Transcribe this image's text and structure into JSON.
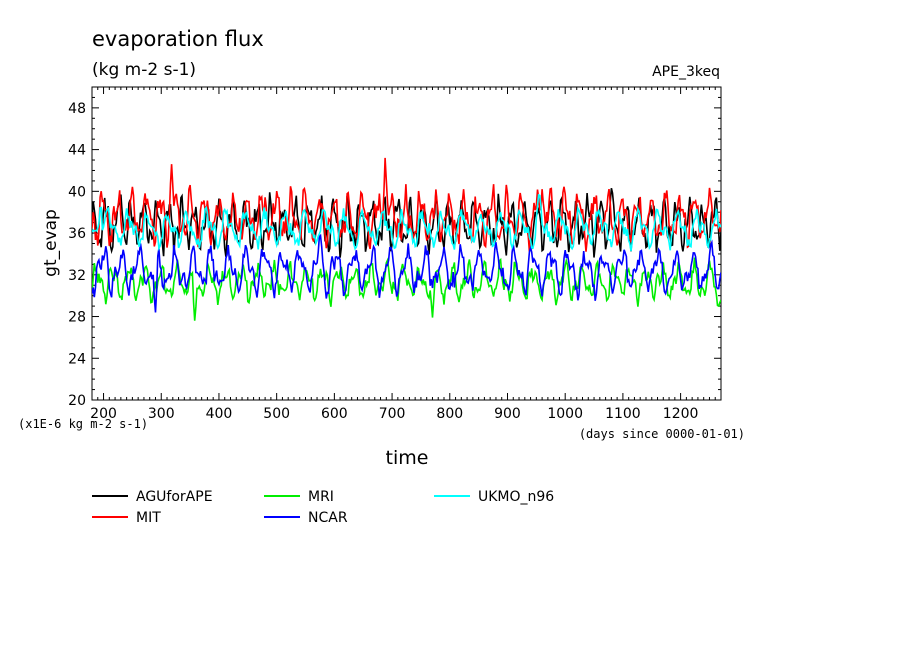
{
  "chart_data": {
    "type": "line",
    "title": "evaporation flux",
    "subtitle": "(kg m-2 s-1)",
    "experiment": "APE_3keq",
    "ylabel": "gt_evap",
    "xlabel": "time",
    "y_scale_note": "(x1E-6 kg m-2 s-1)",
    "x_unit_note": "(days since 0000-01-01)",
    "xlim": [
      180,
      1270
    ],
    "ylim": [
      20,
      50
    ],
    "x_ticks": [
      200,
      300,
      400,
      500,
      600,
      700,
      800,
      900,
      1000,
      1100,
      1200
    ],
    "y_ticks": [
      20,
      24,
      28,
      32,
      36,
      40,
      44,
      48
    ],
    "grid": false,
    "legend_position": "bottom",
    "series": [
      {
        "name": "AGUforAPE",
        "color": "#000000",
        "mean": 36.8,
        "amp": 1.7,
        "noise": 0.8,
        "peaks": [
          [
            230,
            39.7
          ],
          [
            1080,
            40.3
          ]
        ]
      },
      {
        "name": "MIT",
        "color": "#ff0000",
        "mean": 37.5,
        "amp": 1.7,
        "noise": 0.9,
        "peaks": [
          [
            318,
            42.6
          ],
          [
            688,
            43.2
          ],
          [
            960,
            40.2
          ]
        ]
      },
      {
        "name": "MRI",
        "color": "#00ee00",
        "mean": 31.3,
        "amp": 1.2,
        "noise": 0.6,
        "peaks": [
          [
            358,
            27.6
          ],
          [
            770,
            27.9
          ],
          [
            1265,
            28.8
          ]
        ]
      },
      {
        "name": "NCAR",
        "color": "#0000ff",
        "mean": 32.4,
        "amp": 1.5,
        "noise": 0.7,
        "peaks": [
          [
            290,
            28.4
          ],
          [
            575,
            36.0
          ]
        ]
      },
      {
        "name": "UKMO_n96",
        "color": "#00ffff",
        "mean": 36.4,
        "amp": 1.2,
        "noise": 0.6,
        "peaks": [
          [
            195,
            38.8
          ],
          [
            955,
            39.8
          ]
        ]
      }
    ]
  }
}
